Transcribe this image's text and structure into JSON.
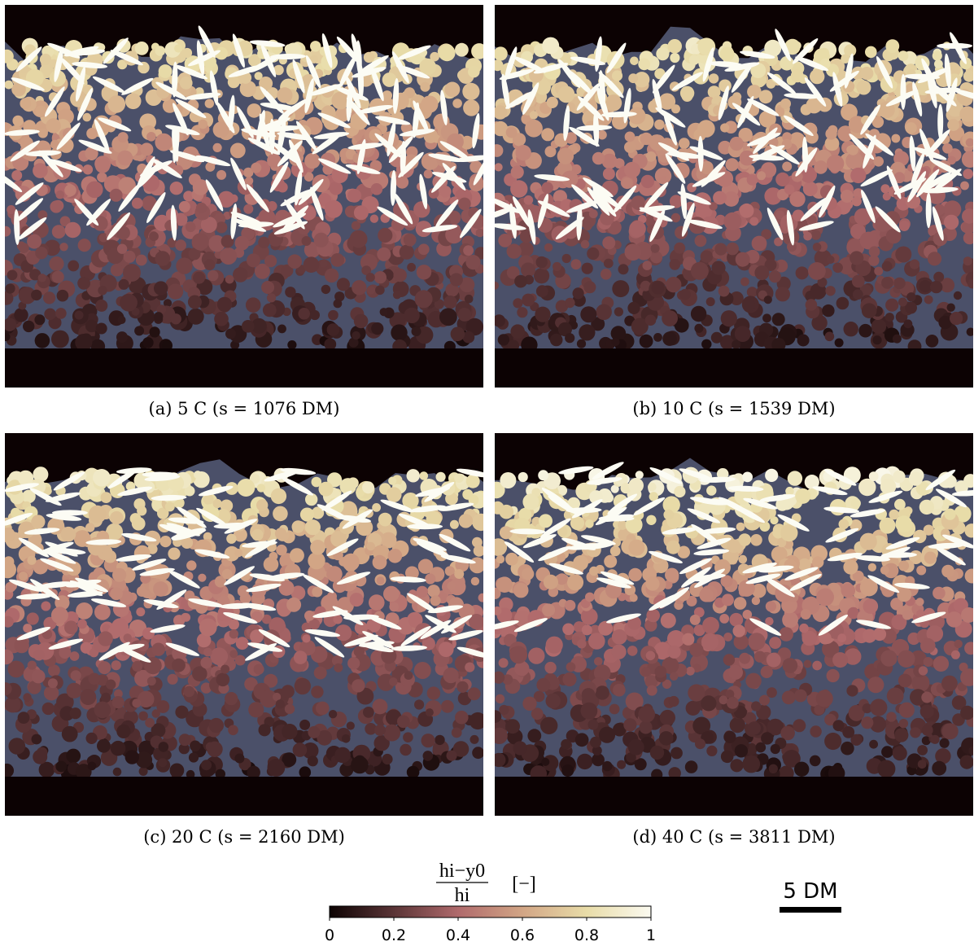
{
  "panels": [
    {
      "caption": "(a) 5 C (s = 1076 DM)"
    },
    {
      "caption": "(b) 10 C (s = 1539 DM)"
    },
    {
      "caption": "(c) 20 C (s = 2160 DM)"
    },
    {
      "caption": "(d) 40 C (s = 3811 DM)"
    }
  ],
  "colorbar": {
    "numerator": "hi−y0",
    "denominator": "hi",
    "unit": "[−]",
    "ticks": [
      0,
      0.2,
      0.4,
      0.6,
      0.8,
      1
    ]
  },
  "scale_bar": {
    "label": "5 DM"
  }
}
